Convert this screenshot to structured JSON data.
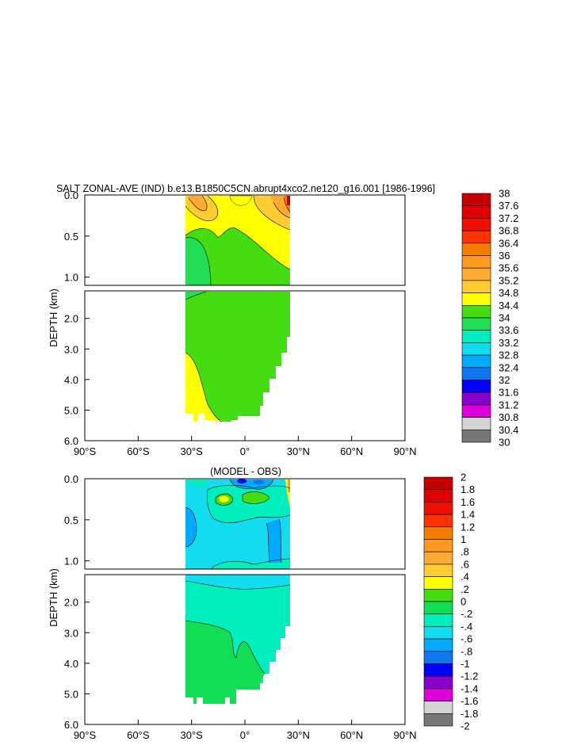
{
  "chart_data": [
    {
      "type": "heatmap",
      "title": "SALT ZONAL-AVE (IND) b.e13.B1850C5CN.abrupt4xco2.ne120_g16.001 [1986-1996]",
      "ylabel": "DEPTH (km)",
      "xlabel": "",
      "x_ticks": [
        "90°S",
        "60°S",
        "30°S",
        "0°",
        "30°N",
        "60°N",
        "90°N"
      ],
      "xlim": [
        -90,
        90
      ],
      "y_ticks_upper": [
        "0.0",
        "0.5",
        "1.0"
      ],
      "y_ticks_lower": [
        "2.0",
        "3.0",
        "4.0",
        "5.0",
        "6.0"
      ],
      "ylim_upper_km": [
        0,
        1.1
      ],
      "ylim_lower_km": [
        1.1,
        6.0
      ],
      "data_extent_lat": [
        -34,
        25
      ],
      "colorbar": {
        "labels": [
          "38",
          "37.6",
          "37.2",
          "36.8",
          "36.4",
          "36",
          "35.6",
          "35.2",
          "34.8",
          "34.4",
          "34",
          "33.6",
          "33.2",
          "32.8",
          "32.4",
          "32",
          "31.6",
          "31.2",
          "30.8",
          "30.4",
          "30"
        ],
        "colors": [
          "#c40000",
          "#dd0000",
          "#ee1100",
          "#ff3300",
          "#f47d00",
          "#ff9920",
          "#ffaa33",
          "#ffcc33",
          "#ffff00",
          "#44dd11",
          "#22dd55",
          "#00eebb",
          "#11ddee",
          "#00aaff",
          "#1177ee",
          "#0000ff",
          "#8800cc",
          "#dd00dd",
          "#d3d3d3",
          "#777777"
        ]
      },
      "regions": {
        "surface_fresh": {
          "value": 35.0,
          "color": "#ffff00"
        },
        "subtropical_max": {
          "value": 35.4,
          "color": "#ffcc33"
        },
        "north_surface_max": {
          "value": 37.8,
          "color": "#c40000"
        },
        "intermediate": {
          "value": 34.6,
          "color": "#44dd11"
        },
        "deep": {
          "value": 34.7,
          "color": "#44dd11"
        },
        "deep_southwest": {
          "value": 34.9,
          "color": "#ffff00"
        }
      }
    },
    {
      "type": "heatmap",
      "title": "(MODEL - OBS)",
      "ylabel": "DEPTH (km)",
      "xlabel": "",
      "x_ticks": [
        "90°S",
        "60°S",
        "30°S",
        "0°",
        "30°N",
        "60°N",
        "90°N"
      ],
      "xlim": [
        -90,
        90
      ],
      "y_ticks_upper": [
        "0.0",
        "0.5",
        "1.0"
      ],
      "y_ticks_lower": [
        "2.0",
        "3.0",
        "4.0",
        "5.0",
        "6.0"
      ],
      "ylim_upper_km": [
        0,
        1.1
      ],
      "ylim_lower_km": [
        1.1,
        6.0
      ],
      "data_extent_lat": [
        -34,
        25
      ],
      "colorbar": {
        "labels": [
          "2",
          "1.8",
          "1.6",
          "1.4",
          "1.2",
          "1",
          ".8",
          ".6",
          ".4",
          ".2",
          "0",
          "-.2",
          "-.4",
          "-.6",
          "-.8",
          "-1",
          "-1.2",
          "-1.4",
          "-1.6",
          "-1.8",
          "-2"
        ],
        "colors": [
          "#c40000",
          "#dd0000",
          "#ee1100",
          "#ff3300",
          "#f47d00",
          "#ff9920",
          "#ffaa33",
          "#ffcc33",
          "#ffff00",
          "#44dd11",
          "#11dd55",
          "#00eebb",
          "#11ddee",
          "#00aaff",
          "#1177ee",
          "#0000ff",
          "#8800cc",
          "#dd00dd",
          "#d3d3d3",
          "#777777"
        ]
      },
      "regions": {
        "upper_background": {
          "value": -0.3,
          "color": "#11ddee"
        },
        "upper_anomaly_pos": {
          "value": 0.3,
          "color": "#44dd11"
        },
        "upper_anomaly_neg": {
          "value": -0.9,
          "color": "#0000ff"
        },
        "west_core": {
          "value": -0.5,
          "color": "#00aaff"
        },
        "deep_background": {
          "value": -0.1,
          "color": "#00eebb"
        },
        "deep_southwest": {
          "value": 0.1,
          "color": "#11dd55"
        }
      }
    }
  ]
}
